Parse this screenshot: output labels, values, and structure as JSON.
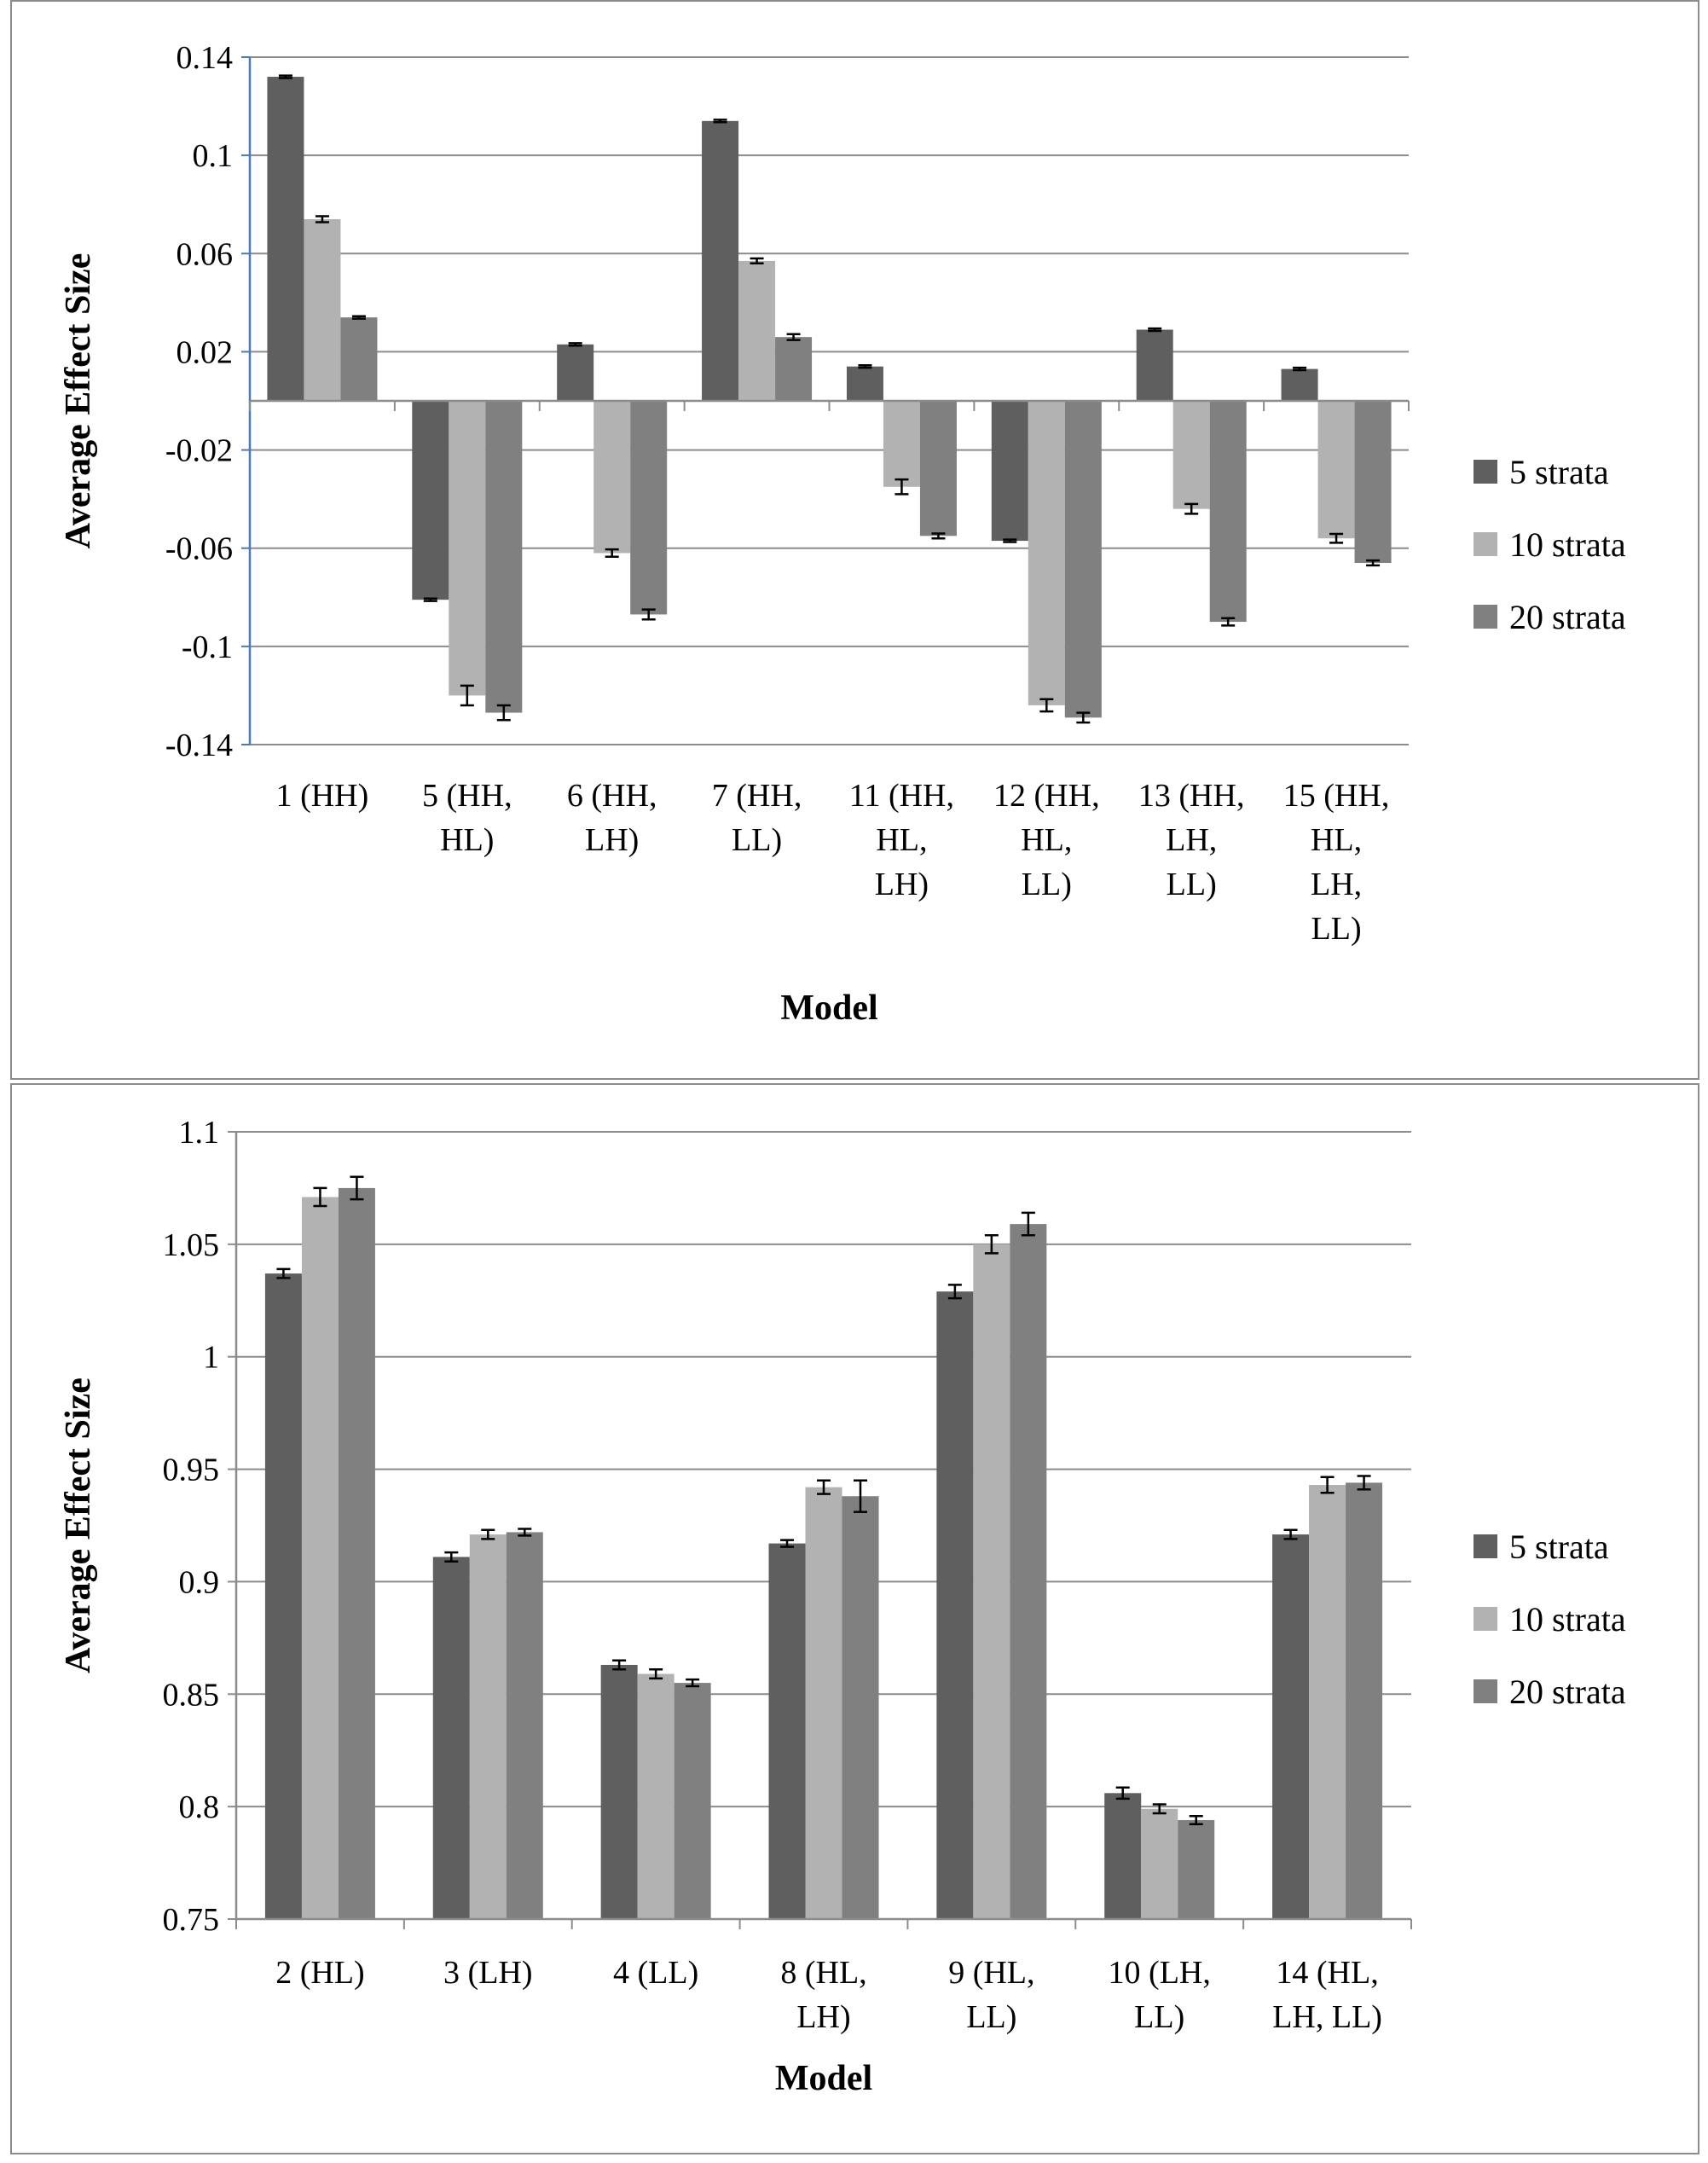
{
  "chart_data": [
    {
      "type": "bar",
      "title": "",
      "xlabel": "Model",
      "ylabel": "Average Effect Size",
      "ylim": [
        -0.14,
        0.14
      ],
      "yticks": [
        "0.14",
        "0.1",
        "0.06",
        "0.02",
        "-0.02",
        "-0.06",
        "-0.1",
        "-0.14"
      ],
      "ytick_values": [
        0.14,
        0.1,
        0.06,
        0.02,
        -0.02,
        -0.06,
        -0.1,
        -0.14
      ],
      "categories": [
        "1 (HH)",
        "5 (HH, HL)",
        "6 (HH, LH)",
        "7 (HH, LL)",
        "11 (HH, HL, LH)",
        "12 (HH, HL, LL)",
        "13 (HH, LH, LL)",
        "15 (HH, HL, LH, LL)"
      ],
      "category_lines": [
        [
          "1 (HH)"
        ],
        [
          "5 (HH,",
          "HL)"
        ],
        [
          "6 (HH,",
          "LH)"
        ],
        [
          "7 (HH,",
          "LL)"
        ],
        [
          "11 (HH,",
          "HL,",
          "LH)"
        ],
        [
          "12 (HH,",
          "HL,",
          "LL)"
        ],
        [
          "13 (HH,",
          "LH,",
          "LL)"
        ],
        [
          "15 (HH,",
          "HL,",
          "LH,",
          "LL)"
        ]
      ],
      "series": [
        {
          "name": "5 strata",
          "color": "#5f5f5f",
          "values": [
            0.132,
            -0.081,
            0.023,
            0.114,
            0.014,
            -0.057,
            0.029,
            0.013
          ],
          "errors": [
            0.0005,
            0.0005,
            0.0005,
            0.0005,
            0.0005,
            0.0005,
            0.0005,
            0.0005
          ]
        },
        {
          "name": "10 strata",
          "color": "#b2b2b2",
          "values": [
            0.074,
            -0.12,
            -0.062,
            0.057,
            -0.035,
            -0.124,
            -0.044,
            -0.056
          ],
          "errors": [
            0.0012,
            0.004,
            0.0015,
            0.001,
            0.003,
            0.0025,
            0.002,
            0.0018
          ]
        },
        {
          "name": "20 strata",
          "color": "#808080",
          "values": [
            0.034,
            -0.127,
            -0.087,
            0.026,
            -0.055,
            -0.129,
            -0.09,
            -0.066
          ],
          "errors": [
            0.0005,
            0.003,
            0.002,
            0.0012,
            0.001,
            0.002,
            0.0015,
            0.001
          ]
        }
      ]
    },
    {
      "type": "bar",
      "title": "",
      "xlabel": "Model",
      "ylabel": "Average Effect Size",
      "ylim": [
        0.75,
        1.1
      ],
      "yticks": [
        "1.1",
        "1.05",
        "1",
        "0.95",
        "0.9",
        "0.85",
        "0.8",
        "0.75"
      ],
      "ytick_values": [
        1.1,
        1.05,
        1.0,
        0.95,
        0.9,
        0.85,
        0.8,
        0.75
      ],
      "categories": [
        "2 (HL)",
        "3 (LH)",
        "4 (LL)",
        "8 (HL, LH)",
        "9 (HL, LL)",
        "10 (LH, LL)",
        "14 (HL, LH, LL)"
      ],
      "category_lines": [
        [
          "2 (HL)"
        ],
        [
          "3 (LH)"
        ],
        [
          "4 (LL)"
        ],
        [
          "8 (HL,",
          "LH)"
        ],
        [
          "9 (HL,",
          "LL)"
        ],
        [
          "10 (LH,",
          "LL)"
        ],
        [
          "14 (HL,",
          "LH, LL)"
        ]
      ],
      "series": [
        {
          "name": "5 strata",
          "color": "#5f5f5f",
          "values": [
            1.037,
            0.911,
            0.863,
            0.917,
            1.029,
            0.806,
            0.921
          ],
          "errors": [
            0.002,
            0.002,
            0.002,
            0.0015,
            0.003,
            0.0025,
            0.002
          ]
        },
        {
          "name": "10 strata",
          "color": "#b2b2b2",
          "values": [
            1.071,
            0.921,
            0.859,
            0.942,
            1.05,
            0.799,
            0.943
          ],
          "errors": [
            0.004,
            0.002,
            0.002,
            0.003,
            0.004,
            0.002,
            0.0035
          ]
        },
        {
          "name": "20 strata",
          "color": "#808080",
          "values": [
            1.075,
            0.922,
            0.855,
            0.938,
            1.059,
            0.794,
            0.944
          ],
          "errors": [
            0.005,
            0.0015,
            0.0015,
            0.007,
            0.005,
            0.0018,
            0.003
          ]
        }
      ]
    }
  ]
}
